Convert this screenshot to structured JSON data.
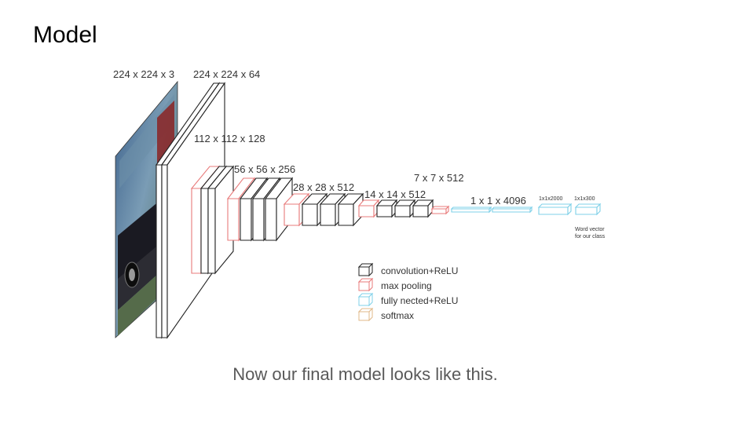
{
  "slide": {
    "title": "Model",
    "caption": "Now our final model looks like this."
  },
  "diagram": {
    "layer_labels": {
      "input": "224 x 224 x 3",
      "conv1": "224 x 224 x 64",
      "conv2": "112 x 112 x 128",
      "conv3": "56 x 56 x 256",
      "conv4": "28 x 28 x 512",
      "conv5": "14 x 14 x 512",
      "pool5": "7 x 7 x 512",
      "fc1": "1 x 1 x 4096",
      "fc2": "1x1x2000",
      "fc3": "1x1x300"
    },
    "output_note_line1": "Word vector",
    "output_note_line2": "for our class",
    "legend": [
      {
        "label": "convolution+ReLU",
        "color": "#222222"
      },
      {
        "label": "max pooling",
        "color": "#e87b7b"
      },
      {
        "label": "fully nected+ReLU",
        "color": "#7fd0e8"
      },
      {
        "label": "softmax",
        "color": "#e0b98a"
      }
    ]
  },
  "colors": {
    "conv": "#222222",
    "pool": "#e87b7b",
    "fc": "#7fd0e8",
    "softmax": "#e0b98a",
    "caption": "#595959"
  }
}
